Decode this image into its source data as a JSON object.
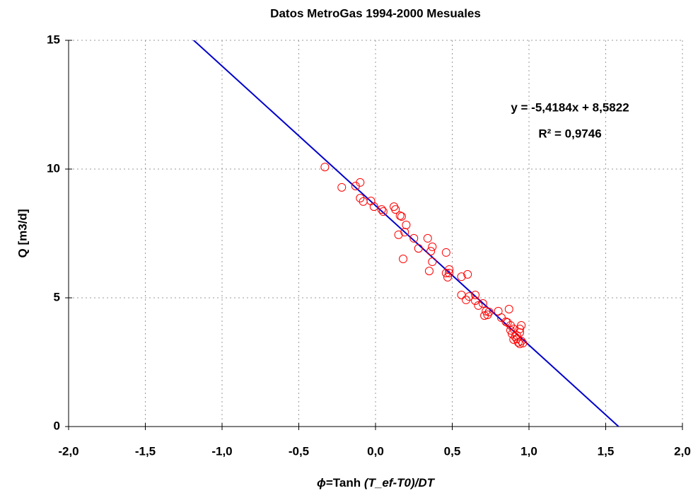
{
  "chart_data": {
    "type": "scatter",
    "title": "Datos MetroGas  1994-2000  Mesuales",
    "xlabel": [
      "ϕ",
      "=Tanh ",
      "(T_ef-T0)/DT"
    ],
    "ylabel": "Q [m3/d]",
    "xlim": [
      -2,
      2
    ],
    "ylim": [
      0,
      15
    ],
    "xticks": [
      {
        "value": -2,
        "label": "-2,0"
      },
      {
        "value": -1.5,
        "label": "-1,5"
      },
      {
        "value": -1,
        "label": "-1,0"
      },
      {
        "value": -0.5,
        "label": "-0,5"
      },
      {
        "value": 0,
        "label": "0,0"
      },
      {
        "value": 0.5,
        "label": "0,5"
      },
      {
        "value": 1,
        "label": "1,0"
      },
      {
        "value": 1.5,
        "label": "1,5"
      },
      {
        "value": 2,
        "label": "2,0"
      }
    ],
    "yticks": [
      0,
      5,
      10,
      15
    ],
    "grid": true,
    "series": [
      {
        "color": "#ff0000",
        "x": [
          -0.33,
          -0.22,
          -0.1,
          -0.13,
          -0.1,
          -0.08,
          -0.03,
          -0.01,
          0.05,
          0.04,
          0.12,
          0.13,
          0.16,
          0.17,
          0.2,
          0.19,
          0.15,
          0.18,
          0.25,
          0.28,
          0.34,
          0.37,
          0.36,
          0.37,
          0.35,
          0.46,
          0.48,
          0.46,
          0.47,
          0.48,
          0.56,
          0.6,
          0.56,
          0.61,
          0.59,
          0.65,
          0.65,
          0.67,
          0.7,
          0.72,
          0.73,
          0.71,
          0.74,
          0.8,
          0.82,
          0.85,
          0.87,
          0.86,
          0.88,
          0.88,
          0.9,
          0.89,
          0.91,
          0.92,
          0.94,
          0.95,
          0.94,
          0.92,
          0.9,
          0.93,
          0.95,
          0.96,
          0.94
        ],
        "values": [
          10.08,
          9.29,
          9.48,
          9.34,
          8.87,
          8.74,
          8.76,
          8.54,
          8.35,
          8.43,
          8.54,
          8.43,
          8.19,
          8.16,
          7.83,
          7.55,
          7.45,
          6.51,
          7.31,
          6.92,
          7.31,
          6.98,
          6.81,
          6.4,
          6.04,
          6.76,
          6.1,
          5.96,
          5.8,
          5.96,
          5.82,
          5.91,
          5.11,
          5.05,
          4.92,
          4.89,
          5.11,
          4.7,
          4.78,
          4.48,
          4.34,
          4.31,
          4.45,
          4.48,
          4.23,
          4.07,
          4.56,
          4.04,
          3.93,
          3.74,
          3.79,
          3.6,
          3.49,
          3.54,
          3.79,
          3.93,
          3.65,
          3.41,
          3.38,
          3.27,
          3.32,
          3.24,
          3.21
        ]
      }
    ],
    "trendline": {
      "slope": -5.4184,
      "intercept": 8.5822,
      "color": "#0000cc"
    },
    "annotations": [
      "y = -5,4184x + 8,5822",
      "R² = 0,9746"
    ]
  }
}
